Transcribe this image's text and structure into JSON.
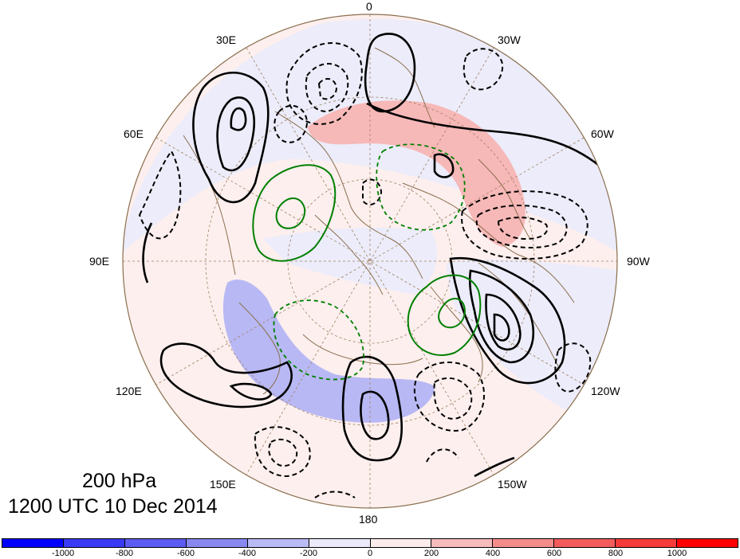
{
  "map": {
    "projection": "north polar stereographic",
    "longitude_labels": [
      "0",
      "30W",
      "60W",
      "90W",
      "120W",
      "150W",
      "180",
      "150E",
      "120E",
      "90E",
      "60E",
      "30E"
    ],
    "level": "200 hPa",
    "valid_time": "1200 UTC 10 Dec 2014"
  },
  "colorbar": {
    "labels": [
      "-1000",
      "-800",
      "-600",
      "-400",
      "-200",
      "0",
      "200",
      "400",
      "600",
      "800",
      "1000"
    ],
    "colors": [
      "#0000ff",
      "#3a3af5",
      "#5c5cf2",
      "#8888f0",
      "#babaf4",
      "#eaeafb",
      "#fcecec",
      "#f7bcbc",
      "#f48c8c",
      "#f25c5c",
      "#f53a3a",
      "#ff0000"
    ]
  },
  "styles": {
    "background": "#ffffff",
    "positive_contour": "#000000",
    "negative_contour": "#000000",
    "green_contour": "#008000",
    "coastline": "#8b6f4e",
    "grid": "#a08060"
  }
}
